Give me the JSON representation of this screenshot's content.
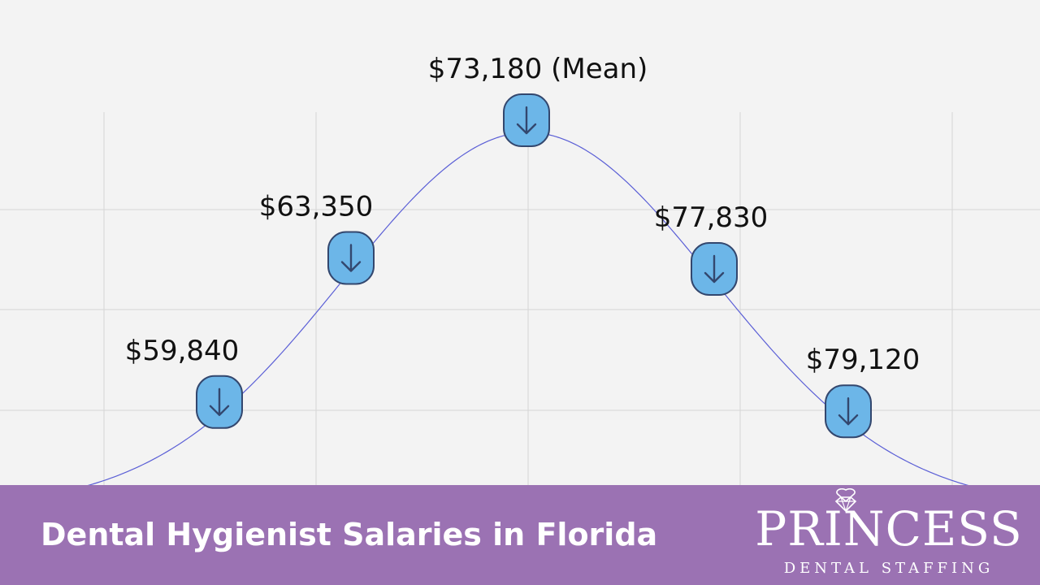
{
  "chart_data": {
    "type": "line",
    "title": "",
    "xlabel": "",
    "ylabel": "",
    "grid": true,
    "curve": "normal-distribution",
    "annotations": [
      {
        "label": "$59,840",
        "value": 59840,
        "icon": "arrow-down-icon"
      },
      {
        "label": "$63,350",
        "value": 63350,
        "icon": "arrow-down-icon"
      },
      {
        "label": "$73,180 (Mean)",
        "value": 73180,
        "icon": "arrow-down-icon"
      },
      {
        "label": "$77,830",
        "value": 77830,
        "icon": "arrow-down-icon"
      },
      {
        "label": "$79,120",
        "value": 79120,
        "icon": "arrow-down-icon"
      }
    ],
    "colors": {
      "curve": "#5b5fd6",
      "grid": "#d6d6d6",
      "marker_fill": "#6cb6e8",
      "marker_stroke": "#33476e",
      "background": "#f3f3f3"
    }
  },
  "footer": {
    "title": "Dental Hygienist Salaries in Florida",
    "background": "#9b72b3"
  },
  "logo": {
    "icon": "diamond-icon"
  }
}
